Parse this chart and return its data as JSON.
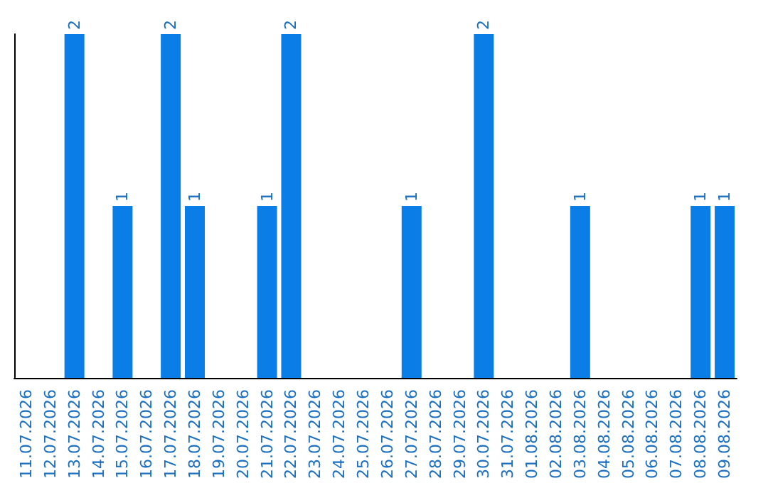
{
  "chart_data": {
    "type": "bar",
    "categories": [
      "11.07.2026",
      "12.07.2026",
      "13.07.2026",
      "14.07.2026",
      "15.07.2026",
      "16.07.2026",
      "17.07.2026",
      "18.07.2026",
      "19.07.2026",
      "20.07.2026",
      "21.07.2026",
      "22.07.2026",
      "23.07.2026",
      "24.07.2026",
      "25.07.2026",
      "26.07.2026",
      "27.07.2026",
      "28.07.2026",
      "29.07.2026",
      "30.07.2026",
      "31.07.2026",
      "01.08.2026",
      "02.08.2026",
      "03.08.2026",
      "04.08.2026",
      "05.08.2026",
      "06.08.2026",
      "07.08.2026",
      "08.08.2026",
      "09.08.2026"
    ],
    "values": [
      null,
      null,
      2,
      null,
      1,
      null,
      2,
      1,
      null,
      null,
      1,
      2,
      null,
      null,
      null,
      null,
      1,
      null,
      null,
      2,
      null,
      null,
      null,
      1,
      null,
      null,
      null,
      null,
      1,
      1
    ],
    "color": "#0a7de6",
    "data_labels": true,
    "grid": false,
    "tick_labels": "x"
  }
}
